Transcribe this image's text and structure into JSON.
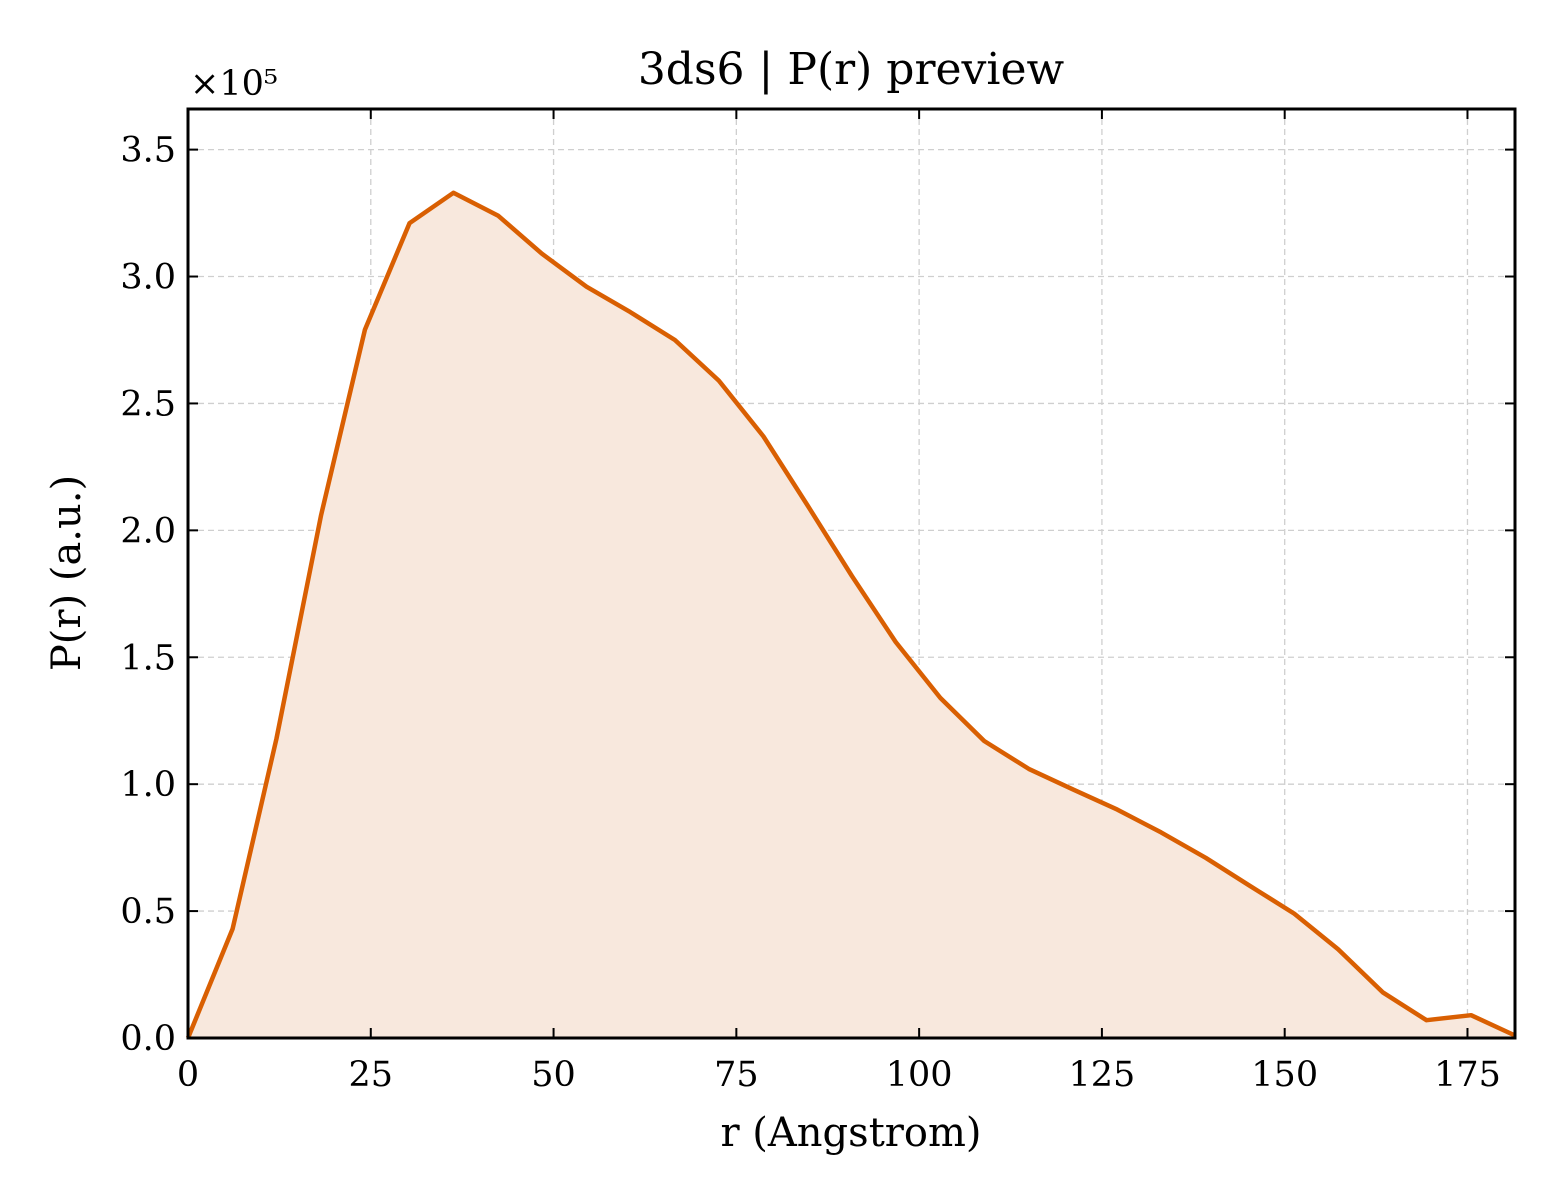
{
  "chart_data": {
    "type": "area",
    "title": "3ds6 | P(r) preview",
    "xlabel": "r (Angstrom)",
    "ylabel": "P(r) (a.u.)",
    "y_scale_label": "×10⁵",
    "xlim": [
      0,
      181.5
    ],
    "ylim": [
      0,
      3.66
    ],
    "y_unit_multiplier": 100000,
    "xticks": [
      0,
      25,
      50,
      75,
      100,
      125,
      150,
      175
    ],
    "xtick_labels": [
      "0",
      "25",
      "50",
      "75",
      "100",
      "125",
      "150",
      "175"
    ],
    "yticks": [
      0,
      0.5,
      1.0,
      1.5,
      2.0,
      2.5,
      3.0,
      3.5
    ],
    "ytick_labels": [
      "0.0",
      "0.5",
      "1.0",
      "1.5",
      "2.0",
      "2.5",
      "3.0",
      "3.5"
    ],
    "grid": true,
    "series": [
      {
        "x": [
          0,
          6.1,
          12.1,
          18.2,
          24.2,
          30.3,
          36.3,
          42.4,
          48.4,
          54.5,
          60.5,
          66.6,
          72.6,
          78.7,
          84.7,
          90.8,
          96.8,
          102.9,
          108.9,
          115.0,
          121.0,
          127.1,
          133.1,
          139.2,
          145.2,
          151.3,
          157.3,
          163.4,
          169.4,
          175.5,
          181.5
        ],
        "y": [
          0.0,
          0.43,
          1.18,
          2.06,
          2.79,
          3.21,
          3.33,
          3.24,
          3.09,
          2.96,
          2.86,
          2.75,
          2.59,
          2.37,
          2.1,
          1.82,
          1.56,
          1.34,
          1.17,
          1.06,
          0.98,
          0.9,
          0.81,
          0.71,
          0.6,
          0.49,
          0.35,
          0.18,
          0.07,
          0.09,
          0.01
        ],
        "color": "#d95f02",
        "fill_color": "#f8e8dd"
      }
    ]
  }
}
